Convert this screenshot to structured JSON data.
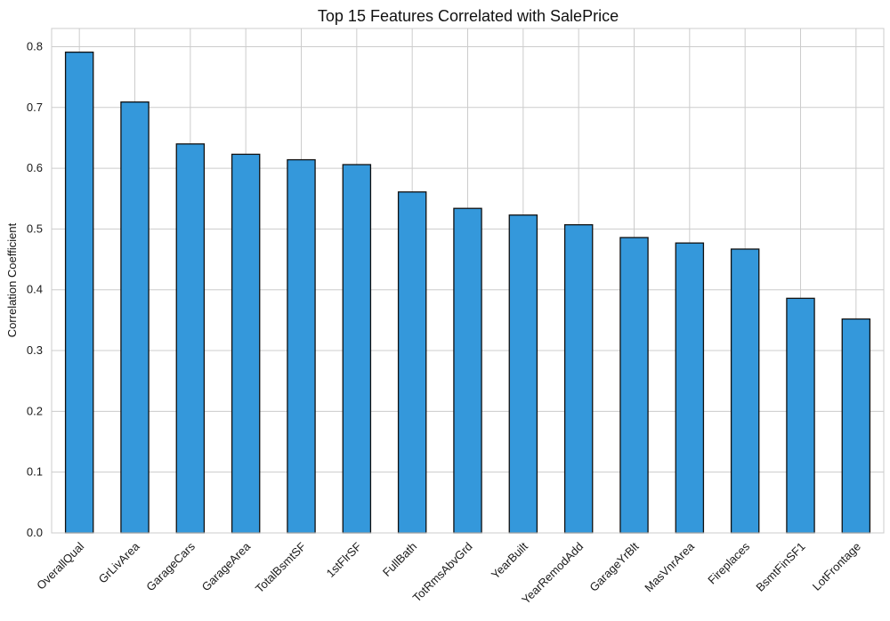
{
  "colors": {
    "bar_fill": "#3498db",
    "bar_edge": "#111111",
    "grid": "#cccccc",
    "frame": "#cccccc",
    "background": "#ffffff"
  },
  "chart_data": {
    "type": "bar",
    "title": "Top 15 Features Correlated with SalePrice",
    "xlabel": "",
    "ylabel": "Correlation Coefficient",
    "ylim": [
      0,
      0.83
    ],
    "yticks": [
      0.0,
      0.1,
      0.2,
      0.3,
      0.4,
      0.5,
      0.6,
      0.7,
      0.8
    ],
    "ytick_labels": [
      "0.0",
      "0.1",
      "0.2",
      "0.3",
      "0.4",
      "0.5",
      "0.6",
      "0.7",
      "0.8"
    ],
    "grid": true,
    "categories": [
      "OverallQual",
      "GrLivArea",
      "GarageCars",
      "GarageArea",
      "TotalBsmtSF",
      "1stFlrSF",
      "FullBath",
      "TotRmsAbvGrd",
      "YearBuilt",
      "YearRemodAdd",
      "GarageYrBlt",
      "MasVnrArea",
      "Fireplaces",
      "BsmtFinSF1",
      "LotFrontage"
    ],
    "values": [
      0.791,
      0.709,
      0.64,
      0.623,
      0.614,
      0.606,
      0.561,
      0.534,
      0.523,
      0.507,
      0.486,
      0.477,
      0.467,
      0.386,
      0.352
    ]
  }
}
